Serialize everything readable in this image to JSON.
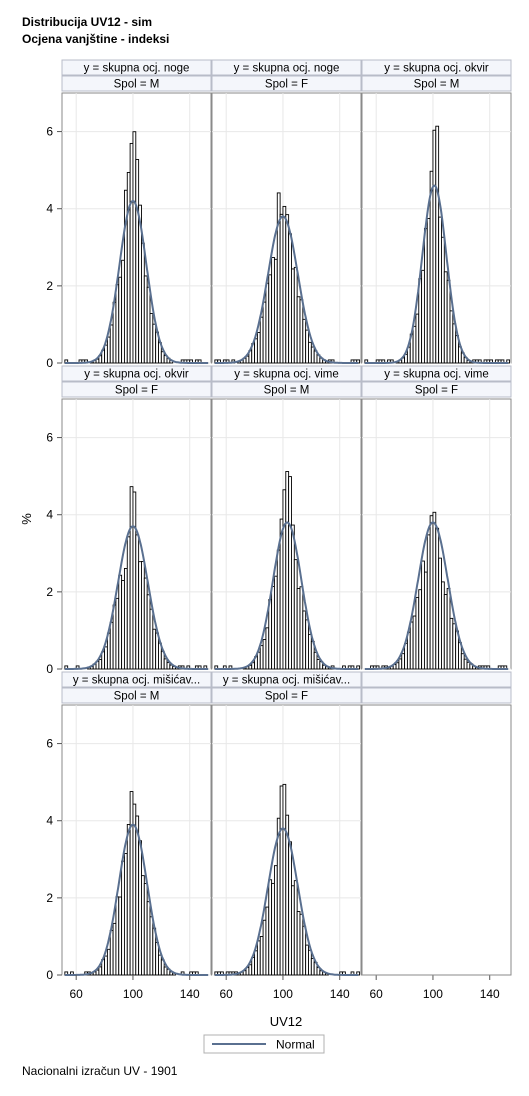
{
  "title": "Distribucija UV12 - sim",
  "subtitle": "Ocjena vanjštine - indeksi",
  "footnote": "Nacionalni izračun UV - 1901",
  "chart_data": {
    "type": "histogram-panel",
    "xlabel": "UV12",
    "ylabel": "%",
    "x_ticks": [
      60,
      100,
      140
    ],
    "y_ticks": [
      0,
      2,
      4,
      6
    ],
    "xlim": [
      50,
      155
    ],
    "ylim": [
      0,
      7
    ],
    "bin_width": 2,
    "legend": {
      "position": "bottom",
      "entries": [
        "Normal"
      ]
    },
    "colors": {
      "bar_outline": "#000000",
      "bar_fill": "#ffffff",
      "normal_curve": "#5a7090",
      "grid": "#e8e8e8",
      "panel_border": "#8a8a8a",
      "header_fill": "#f4f6fb"
    },
    "panels": [
      {
        "row": 0,
        "col": 0,
        "header1": "y = skupna ocj. noge",
        "header2": "Spol = M",
        "mean": 100,
        "peak": 6.8,
        "normal_peak": 4.2,
        "sd": 9.5
      },
      {
        "row": 0,
        "col": 1,
        "header1": "y = skupna ocj. noge",
        "header2": "Spol = F",
        "mean": 100,
        "peak": 4.7,
        "normal_peak": 3.8,
        "sd": 10.5
      },
      {
        "row": 0,
        "col": 2,
        "header1": "y = skupna ocj. okvir",
        "header2": "Spol = M",
        "mean": 101,
        "peak": 6.2,
        "normal_peak": 4.6,
        "sd": 8.5
      },
      {
        "row": 1,
        "col": 0,
        "header1": "y = skupna ocj. okvir",
        "header2": "Spol = F",
        "mean": 100,
        "peak": 4.5,
        "normal_peak": 3.7,
        "sd": 10.5
      },
      {
        "row": 1,
        "col": 1,
        "header1": "y = skupna ocj. vime",
        "header2": "Spol = M",
        "mean": 103,
        "peak": 4.9,
        "normal_peak": 3.8,
        "sd": 10
      },
      {
        "row": 1,
        "col": 2,
        "header1": "y = skupna ocj. vime",
        "header2": "Spol = F",
        "mean": 100,
        "peak": 4.5,
        "normal_peak": 3.8,
        "sd": 10.5
      },
      {
        "row": 2,
        "col": 0,
        "header1": "y = skupna ocj. mišićav...",
        "header2": "Spol = M",
        "mean": 100,
        "peak": 5.2,
        "normal_peak": 3.9,
        "sd": 10
      },
      {
        "row": 2,
        "col": 1,
        "header1": "y = skupna ocj. mišićav...",
        "header2": "Spol = F",
        "mean": 100,
        "peak": 4.8,
        "normal_peak": 3.8,
        "sd": 10.5
      }
    ]
  }
}
